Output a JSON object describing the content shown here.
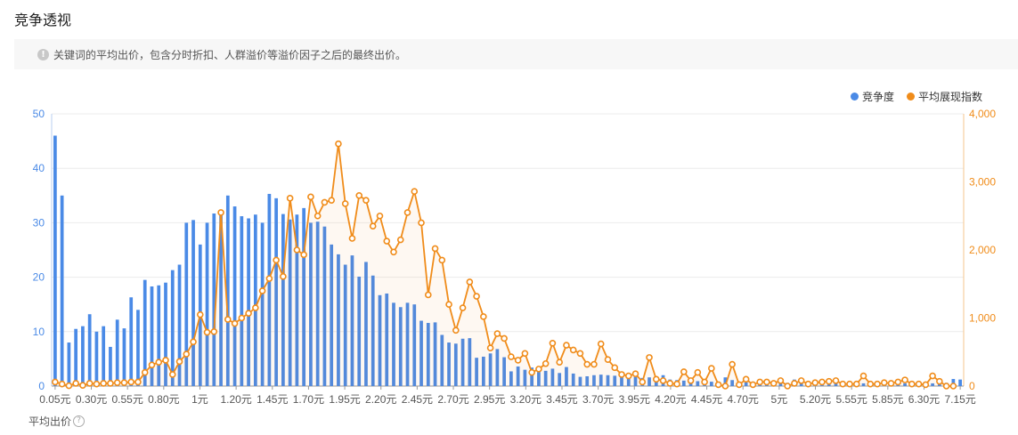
{
  "page": {
    "title": "竞争透视"
  },
  "notice": {
    "text": "关键词的平均出价，包含分时折扣、人群溢价等溢价因子之后的最终出价。"
  },
  "colors": {
    "bar": "#4a8ae6",
    "line": "#f08c1a",
    "grid": "#ececec"
  },
  "chart_data": {
    "type": "bar+line",
    "xlabel": "平均出价",
    "x_tick_labels": [
      "0.05元",
      "0.30元",
      "0.55元",
      "0.80元",
      "1元",
      "1.20元",
      "1.45元",
      "1.70元",
      "1.95元",
      "2.20元",
      "2.45元",
      "2.70元",
      "2.95元",
      "3.20元",
      "3.45元",
      "3.70元",
      "3.95元",
      "4.20元",
      "4.45元",
      "4.70元",
      "5元",
      "5.20元",
      "5.55元",
      "5.85元",
      "6.30元",
      "7.15元"
    ],
    "y_left": {
      "min": 0,
      "max": 50,
      "ticks": [
        "0",
        "10",
        "20",
        "30",
        "40",
        "50"
      ]
    },
    "y_right": {
      "min": 0,
      "max": 4000,
      "ticks": [
        "0",
        "1,000",
        "2,000",
        "3,000",
        "4,000"
      ]
    },
    "legend": {
      "position": "top-right"
    },
    "series": [
      {
        "name": "竞争度",
        "type": "bar",
        "axis": "left",
        "values": [
          46,
          35,
          8,
          10.5,
          11,
          13.2,
          10,
          11,
          7.2,
          12.2,
          10.6,
          16.3,
          14,
          19.5,
          18.3,
          18.5,
          19,
          21.3,
          22.3,
          30,
          30.5,
          26,
          30,
          31.7,
          32,
          35,
          33,
          31.2,
          30.8,
          31.5,
          30,
          35.3,
          34.5,
          31.6,
          30.6,
          31.5,
          32.7,
          30,
          30.2,
          29.3,
          26,
          24.2,
          22.3,
          24,
          20.1,
          22.8,
          20.3,
          16.7,
          17,
          15.3,
          14.5,
          15.3,
          15,
          12,
          11.6,
          11.7,
          9.4,
          8,
          7.8,
          8.7,
          8.8,
          5.2,
          5.4,
          6,
          6.8,
          5.3,
          2.7,
          3.6,
          3,
          3.4,
          2.6,
          2.8,
          3.2,
          2.4,
          3.5,
          2.3,
          1.7,
          1.8,
          2,
          2.1,
          2,
          1.9,
          1.8,
          2.2,
          1.7,
          1.5,
          1.6,
          1.6,
          2,
          1.2,
          1.1,
          1,
          1,
          0.9,
          0.9,
          0.8,
          0.8,
          1.6,
          1.1,
          0.8,
          0.7,
          0.6,
          0.7,
          0.8,
          0.7,
          0.7,
          0.6,
          1.2,
          0.6,
          0.6,
          0.5,
          0.5,
          0.6,
          0.6,
          0.5,
          0.5,
          0.6,
          0.5,
          0.5,
          0.6,
          0.5,
          0.5,
          0.6,
          0.5,
          0.5,
          0.6,
          0.5,
          0.5,
          0.5,
          0.6,
          1.3,
          1.2
        ]
      },
      {
        "name": "平均展现指数",
        "type": "line",
        "axis": "right",
        "values": [
          60,
          30,
          5,
          40,
          10,
          40,
          30,
          40,
          40,
          50,
          50,
          60,
          60,
          200,
          310,
          350,
          380,
          170,
          360,
          470,
          650,
          1050,
          790,
          800,
          2550,
          980,
          920,
          1000,
          1070,
          1150,
          1400,
          1580,
          1850,
          1610,
          2760,
          2000,
          1930,
          2780,
          2500,
          2700,
          2730,
          3560,
          2680,
          2170,
          2800,
          2730,
          2350,
          2500,
          2130,
          1970,
          2150,
          2550,
          2860,
          2400,
          1340,
          2020,
          1850,
          1200,
          820,
          1150,
          1530,
          1320,
          1020,
          560,
          770,
          700,
          430,
          380,
          480,
          200,
          250,
          330,
          630,
          350,
          600,
          530,
          480,
          320,
          320,
          620,
          390,
          270,
          170,
          150,
          180,
          60,
          420,
          100,
          80,
          40,
          30,
          210,
          80,
          200,
          60,
          260,
          20,
          0,
          320,
          20,
          100,
          20,
          60,
          60,
          40,
          80,
          0,
          40,
          80,
          30,
          50,
          60,
          70,
          80,
          30,
          30,
          30,
          150,
          30,
          30,
          50,
          40,
          60,
          90,
          30,
          30,
          20,
          150,
          70,
          0,
          0
        ]
      }
    ]
  }
}
